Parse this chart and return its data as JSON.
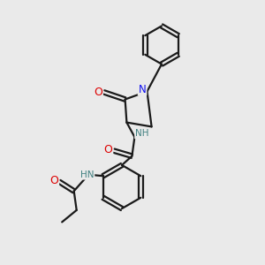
{
  "background_color": "#eaeaea",
  "bond_color": "#1a1a1a",
  "N_color": "#1010ee",
  "O_color": "#dd0000",
  "H_color": "#408080",
  "line_width": 1.6,
  "figsize": [
    3.0,
    3.0
  ],
  "dpi": 100,
  "xlim": [
    0,
    10
  ],
  "ylim": [
    0,
    10
  ]
}
